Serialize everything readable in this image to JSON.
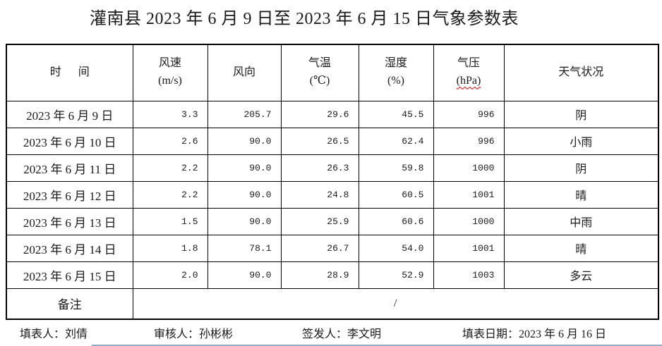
{
  "title": "灌南县 2023 年 6 月 9 日至 2023 年 6 月 15 日气象参数表",
  "table": {
    "headers": {
      "time": "时      间",
      "wind_speed": {
        "label": "风速",
        "unit": "(m/s)"
      },
      "wind_direction": "风向",
      "temperature": {
        "label": "气温",
        "unit": "(℃)"
      },
      "humidity": {
        "label": "湿度",
        "unit": "(%)"
      },
      "pressure": {
        "label": "气压",
        "unit": "(hPa)"
      },
      "weather": "天气状况"
    },
    "rows": [
      {
        "date": "2023 年 6 月 9 日",
        "wind_speed": "3.3",
        "wind_direction": "205.7",
        "temperature": "29.6",
        "humidity": "45.5",
        "pressure": "996",
        "weather": "阴"
      },
      {
        "date": "2023 年 6 月 10 日",
        "wind_speed": "2.6",
        "wind_direction": "90.0",
        "temperature": "26.5",
        "humidity": "62.4",
        "pressure": "996",
        "weather": "小雨"
      },
      {
        "date": "2023 年 6 月 11 日",
        "wind_speed": "2.2",
        "wind_direction": "90.0",
        "temperature": "26.3",
        "humidity": "59.8",
        "pressure": "1000",
        "weather": "阴"
      },
      {
        "date": "2023 年 6 月 12 日",
        "wind_speed": "2.2",
        "wind_direction": "90.0",
        "temperature": "24.8",
        "humidity": "60.5",
        "pressure": "1001",
        "weather": "晴"
      },
      {
        "date": "2023 年 6 月 13 日",
        "wind_speed": "1.5",
        "wind_direction": "90.0",
        "temperature": "25.9",
        "humidity": "60.6",
        "pressure": "1000",
        "weather": "中雨"
      },
      {
        "date": "2023 年 6 月 14 日",
        "wind_speed": "1.8",
        "wind_direction": "78.1",
        "temperature": "26.7",
        "humidity": "54.0",
        "pressure": "1001",
        "weather": "晴"
      },
      {
        "date": "2023 年 6 月 15 日",
        "wind_speed": "2.0",
        "wind_direction": "90.0",
        "temperature": "28.9",
        "humidity": "52.9",
        "pressure": "1003",
        "weather": "多云"
      }
    ],
    "remark_label": "备注",
    "remark_value": "/"
  },
  "footer": {
    "filled_by": "填表人：刘倩",
    "reviewed_by": "审核人：孙彬彬",
    "issued_by": "签发人：李文明",
    "fill_date": "填表日期：2023 年 6 月 16 日"
  },
  "colors": {
    "border": "#000000",
    "spellcheck_underline": "#cc0000",
    "clipped_edge_line": "#7d9ec7"
  }
}
